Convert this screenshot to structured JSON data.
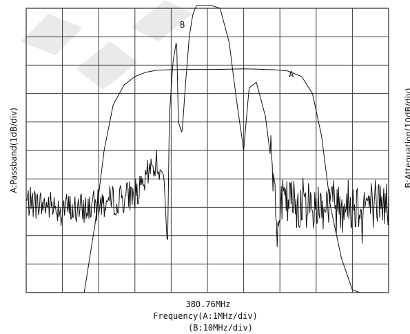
{
  "chart_data": {
    "type": "line",
    "title": "",
    "center_frequency": "380.76MHz",
    "xlabel": "Frequency(A:1MHz/div)",
    "xlabel2": "(B:10MHz/div)",
    "ylabel_left": "A:Passband(1dB/div)",
    "ylabel_right": "B:Attenuation(10dB/div)",
    "x_divisions": 10,
    "y_divisions": 10,
    "x_range_div": [
      -5,
      5
    ],
    "y_range_div": [
      0,
      10
    ],
    "grid": true,
    "series": [
      {
        "name": "A",
        "units": "divisions",
        "x": [
          -4.9,
          -3.4,
          -3.1,
          -2.85,
          -2.6,
          -2.3,
          -2.0,
          -1.7,
          -1.4,
          -1.0,
          -0.6,
          -0.2,
          0.2,
          0.6,
          1.0,
          1.4,
          1.8,
          2.2,
          2.6,
          2.9,
          3.15,
          3.4,
          3.7,
          4.0,
          4.2,
          4.9
        ],
        "y": [
          0,
          0,
          2.4,
          5.0,
          6.6,
          7.3,
          7.6,
          7.75,
          7.82,
          7.84,
          7.85,
          7.85,
          7.85,
          7.86,
          7.87,
          7.86,
          7.84,
          7.8,
          7.6,
          7.0,
          5.5,
          3.0,
          1.2,
          0.1,
          0,
          0
        ]
      },
      {
        "name": "B",
        "units": "divisions",
        "x": [
          -5.0,
          -4.6,
          -4.0,
          -3.6,
          -3.0,
          -2.4,
          -1.8,
          -1.6,
          -1.4,
          -1.2,
          -1.1,
          -1.05,
          -0.95,
          -0.85,
          -0.8,
          -0.7,
          -0.6,
          -0.5,
          -0.4,
          -0.3,
          -0.2,
          0.1,
          0.35,
          0.6,
          0.8,
          1.0,
          1.15,
          1.35,
          1.6,
          1.9,
          2.1,
          2.4,
          3.0,
          3.6,
          4.0,
          4.6,
          5.0
        ],
        "y": [
          3.2,
          3.1,
          3.0,
          2.9,
          3.1,
          3.3,
          3.6,
          4.3,
          4.6,
          4.1,
          1.5,
          6.2,
          8.1,
          8.9,
          6.0,
          5.6,
          7.4,
          9.0,
          9.8,
          10.1,
          10.1,
          10.1,
          10.0,
          8.8,
          6.8,
          5.0,
          7.2,
          7.4,
          6.2,
          3.2,
          3.1,
          3.2,
          3.1,
          3.2,
          3.1,
          3.2,
          3.1
        ]
      }
    ],
    "annotations": [
      {
        "text": "A"
      },
      {
        "text": "B"
      }
    ]
  }
}
